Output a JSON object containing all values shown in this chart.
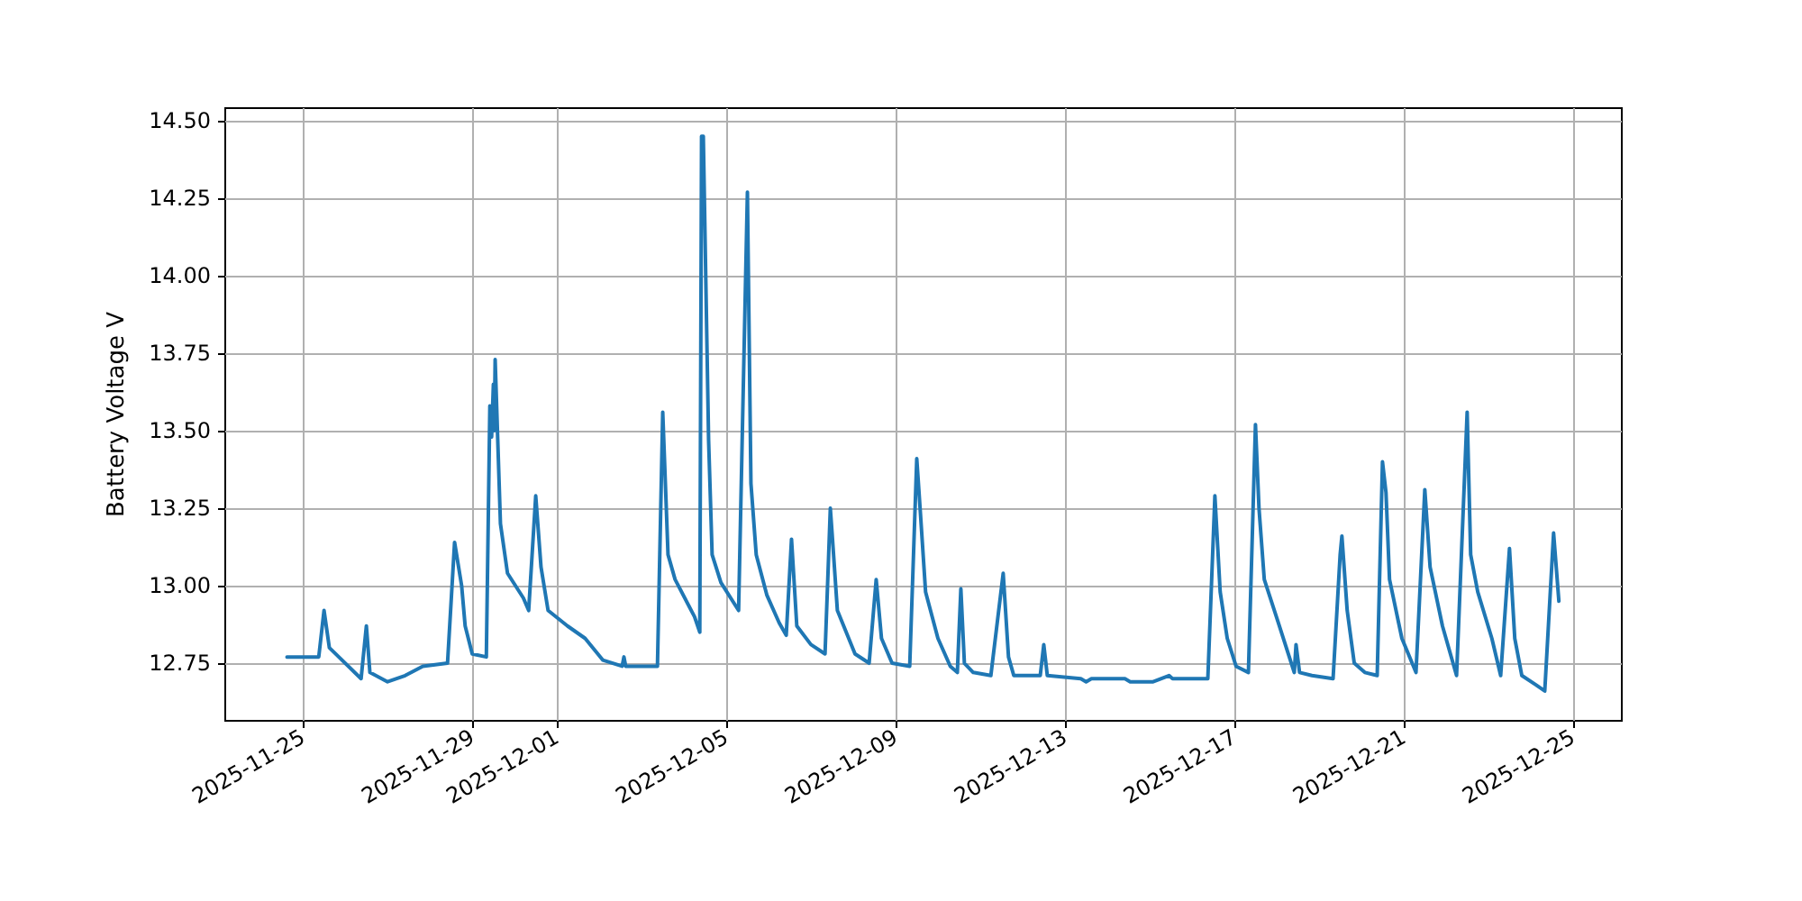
{
  "chart_data": {
    "type": "line",
    "ylabel": "Battery Voltage V",
    "grid": true,
    "marker": "none",
    "line_style": "solid",
    "xlim": [
      "2025-11-23T04:00",
      "2025-12-26T03:40"
    ],
    "xticks": [
      "2025-11-25",
      "2025-11-29",
      "2025-12-01",
      "2025-12-05",
      "2025-12-09",
      "2025-12-13",
      "2025-12-17",
      "2025-12-21",
      "2025-12-25"
    ],
    "ylim": [
      12.564,
      14.541
    ],
    "yticks": [
      12.75,
      {
        "value": 13.0,
        "label": "13.00"
      },
      13.25,
      {
        "value": 13.5,
        "label": "13.50"
      },
      13.75,
      {
        "value": 14.0,
        "label": "14.00"
      },
      14.25,
      {
        "value": 14.5,
        "label": "14.50"
      }
    ],
    "series": [
      {
        "color": "#1f77b4",
        "x": [
          "2025-11-24T15:00",
          "2025-11-25T09:00",
          "2025-11-25T12:00",
          "2025-11-25T15:00",
          "2025-11-26T09:00",
          "2025-11-26T12:00",
          "2025-11-26T14:00",
          "2025-11-27T00:00",
          "2025-11-27T10:00",
          "2025-11-27T20:00",
          "2025-11-28T10:00",
          "2025-11-28T14:00",
          "2025-11-28T18:00",
          "2025-11-28T20:00",
          "2025-11-29T00:00",
          "2025-11-29T08:00",
          "2025-11-29T10:00",
          "2025-11-29T11:00",
          "2025-11-29T12:00",
          "2025-11-29T12:30",
          "2025-11-29T13:00",
          "2025-11-29T16:00",
          "2025-11-29T20:00",
          "2025-11-30T05:00",
          "2025-11-30T08:00",
          "2025-11-30T12:00",
          "2025-11-30T15:00",
          "2025-11-30T19:00",
          "2025-12-01T06:00",
          "2025-12-01T16:00",
          "2025-12-02T02:00",
          "2025-12-02T13:00",
          "2025-12-02T14:00",
          "2025-12-02T15:00",
          "2025-12-03T09:00",
          "2025-12-03T12:00",
          "2025-12-03T15:00",
          "2025-12-03T19:00",
          "2025-12-04T06:00",
          "2025-12-04T09:00",
          "2025-12-04T10:00",
          "2025-12-04T11:00",
          "2025-12-04T14:00",
          "2025-12-04T16:00",
          "2025-12-04T21:00",
          "2025-12-05T07:00",
          "2025-12-05T12:00",
          "2025-12-05T14:00",
          "2025-12-05T17:00",
          "2025-12-05T23:00",
          "2025-12-06T06:00",
          "2025-12-06T10:00",
          "2025-12-06T13:00",
          "2025-12-06T16:00",
          "2025-12-07T00:00",
          "2025-12-07T08:00",
          "2025-12-07T10:00",
          "2025-12-07T11:00",
          "2025-12-07T12:00",
          "2025-12-07T15:00",
          "2025-12-08T01:00",
          "2025-12-08T09:00",
          "2025-12-08T13:00",
          "2025-12-08T16:00",
          "2025-12-08T22:00",
          "2025-12-09T08:00",
          "2025-12-09T12:00",
          "2025-12-09T14:00",
          "2025-12-09T17:00",
          "2025-12-10T00:00",
          "2025-12-10T07:00",
          "2025-12-10T11:00",
          "2025-12-10T13:00",
          "2025-12-10T15:00",
          "2025-12-10T20:00",
          "2025-12-11T06:00",
          "2025-12-11T13:00",
          "2025-12-11T16:00",
          "2025-12-11T19:00",
          "2025-12-12T10:00",
          "2025-12-12T12:00",
          "2025-12-12T14:00",
          "2025-12-13T09:00",
          "2025-12-13T12:00",
          "2025-12-13T15:00",
          "2025-12-14T10:00",
          "2025-12-14T13:00",
          "2025-12-15T02:00",
          "2025-12-15T11:00",
          "2025-12-15T13:00",
          "2025-12-16T09:00",
          "2025-12-16T13:00",
          "2025-12-16T16:00",
          "2025-12-16T20:00",
          "2025-12-17T01:00",
          "2025-12-17T08:00",
          "2025-12-17T12:00",
          "2025-12-17T14:00",
          "2025-12-17T17:00",
          "2025-12-18T01:00",
          "2025-12-18T10:00",
          "2025-12-18T11:00",
          "2025-12-18T13:00",
          "2025-12-18T20:00",
          "2025-12-19T08:00",
          "2025-12-19T12:00",
          "2025-12-19T13:00",
          "2025-12-19T16:00",
          "2025-12-19T20:00",
          "2025-12-20T02:00",
          "2025-12-20T09:00",
          "2025-12-20T12:00",
          "2025-12-20T14:00",
          "2025-12-20T16:00",
          "2025-12-20T23:00",
          "2025-12-21T07:00",
          "2025-12-21T12:00",
          "2025-12-21T15:00",
          "2025-12-21T22:00",
          "2025-12-22T06:00",
          "2025-12-22T12:00",
          "2025-12-22T14:00",
          "2025-12-22T18:00",
          "2025-12-23T02:00",
          "2025-12-23T07:00",
          "2025-12-23T12:00",
          "2025-12-23T15:00",
          "2025-12-23T19:00",
          "2025-12-24T03:00",
          "2025-12-24T08:00",
          "2025-12-24T13:00",
          "2025-12-24T16:00"
        ],
        "values": [
          12.77,
          12.77,
          12.92,
          12.8,
          12.7,
          12.87,
          12.72,
          12.69,
          12.71,
          12.74,
          12.75,
          13.14,
          13.0,
          12.87,
          12.78,
          12.77,
          13.58,
          13.48,
          13.65,
          13.5,
          13.73,
          13.2,
          13.04,
          12.96,
          12.92,
          13.29,
          13.06,
          12.92,
          12.87,
          12.83,
          12.76,
          12.74,
          12.77,
          12.74,
          12.74,
          13.56,
          13.1,
          13.02,
          12.9,
          12.85,
          14.45,
          14.45,
          13.47,
          13.1,
          13.01,
          12.92,
          14.27,
          13.33,
          13.1,
          12.97,
          12.88,
          12.84,
          13.15,
          12.87,
          12.81,
          12.78,
          13.09,
          13.25,
          13.17,
          12.92,
          12.78,
          12.75,
          13.02,
          12.83,
          12.75,
          12.74,
          13.41,
          13.24,
          12.98,
          12.83,
          12.74,
          12.72,
          12.99,
          12.75,
          12.72,
          12.71,
          13.04,
          12.77,
          12.71,
          12.71,
          12.81,
          12.71,
          12.7,
          12.69,
          12.7,
          12.7,
          12.69,
          12.69,
          12.71,
          12.7,
          12.7,
          13.29,
          12.98,
          12.83,
          12.74,
          12.72,
          13.52,
          13.25,
          13.02,
          12.88,
          12.72,
          12.81,
          12.72,
          12.71,
          12.7,
          13.1,
          13.16,
          12.92,
          12.75,
          12.72,
          12.71,
          13.4,
          13.3,
          13.02,
          12.83,
          12.72,
          13.31,
          13.06,
          12.87,
          12.71,
          13.56,
          13.1,
          12.98,
          12.83,
          12.71,
          13.12,
          12.83,
          12.71,
          12.68,
          12.66,
          13.17,
          12.95
        ]
      }
    ]
  }
}
